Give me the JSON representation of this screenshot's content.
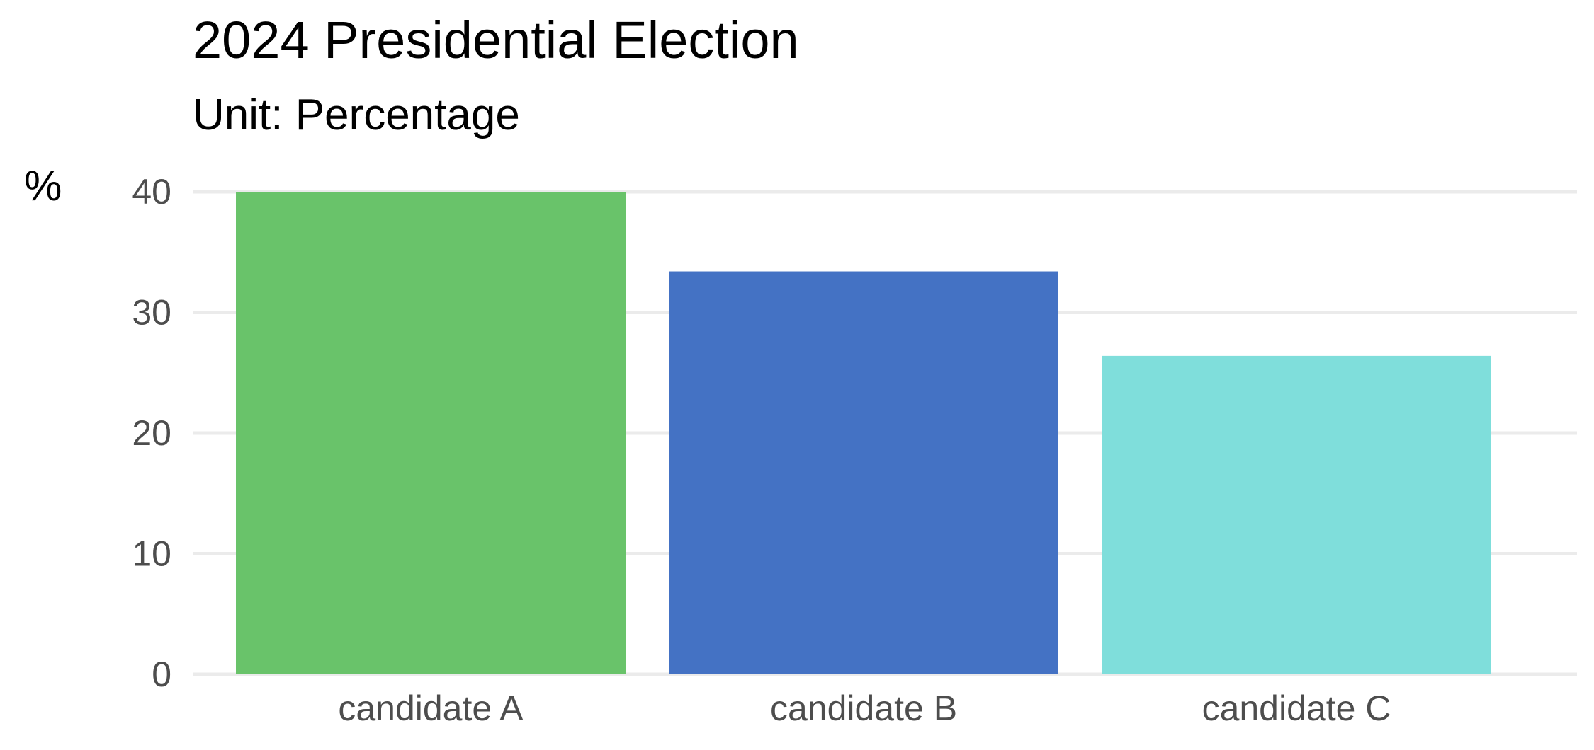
{
  "chart_data": {
    "type": "bar",
    "title": "2024 Presidential Election",
    "subtitle": "Unit: Percentage",
    "ylabel": "%",
    "xlabel": "",
    "categories": [
      "candidate A",
      "candidate B",
      "candidate C"
    ],
    "values": [
      40.0,
      33.4,
      26.4
    ],
    "colors": [
      "#69c36a",
      "#4472c4",
      "#7fdedb"
    ],
    "ylim": [
      0,
      40
    ],
    "yticks": [
      "0",
      "10",
      "20",
      "30",
      "40"
    ],
    "grid": "horizontal",
    "legend": "none"
  }
}
